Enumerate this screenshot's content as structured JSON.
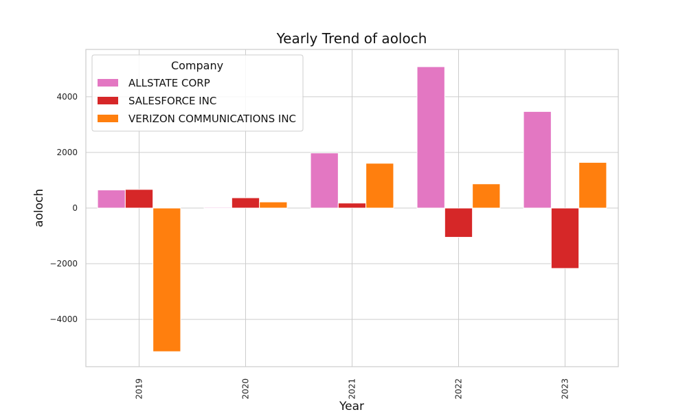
{
  "chart_data": {
    "type": "bar",
    "title": "Yearly Trend of aoloch",
    "xlabel": "Year",
    "ylabel": "aoloch",
    "categories": [
      "2019",
      "2020",
      "2021",
      "2022",
      "2023"
    ],
    "ylim": [
      -5700,
      5700
    ],
    "yticks": [
      -4000,
      -2000,
      0,
      2000,
      4000
    ],
    "ytick_labels": [
      "−4000",
      "−2000",
      "0",
      "2000",
      "4000"
    ],
    "grid": true,
    "legend": {
      "title": "Company",
      "placement": "top-left"
    },
    "series": [
      {
        "name": "ALLSTATE CORP",
        "color": "#e377c2",
        "values": [
          650,
          30,
          1980,
          5080,
          3470
        ]
      },
      {
        "name": "SALESFORCE INC",
        "color": "#d62728",
        "values": [
          670,
          370,
          180,
          -1050,
          -2170
        ]
      },
      {
        "name": "VERIZON COMMUNICATIONS INC",
        "color": "#ff7f0e",
        "values": [
          -5160,
          220,
          1610,
          870,
          1640
        ]
      }
    ]
  }
}
